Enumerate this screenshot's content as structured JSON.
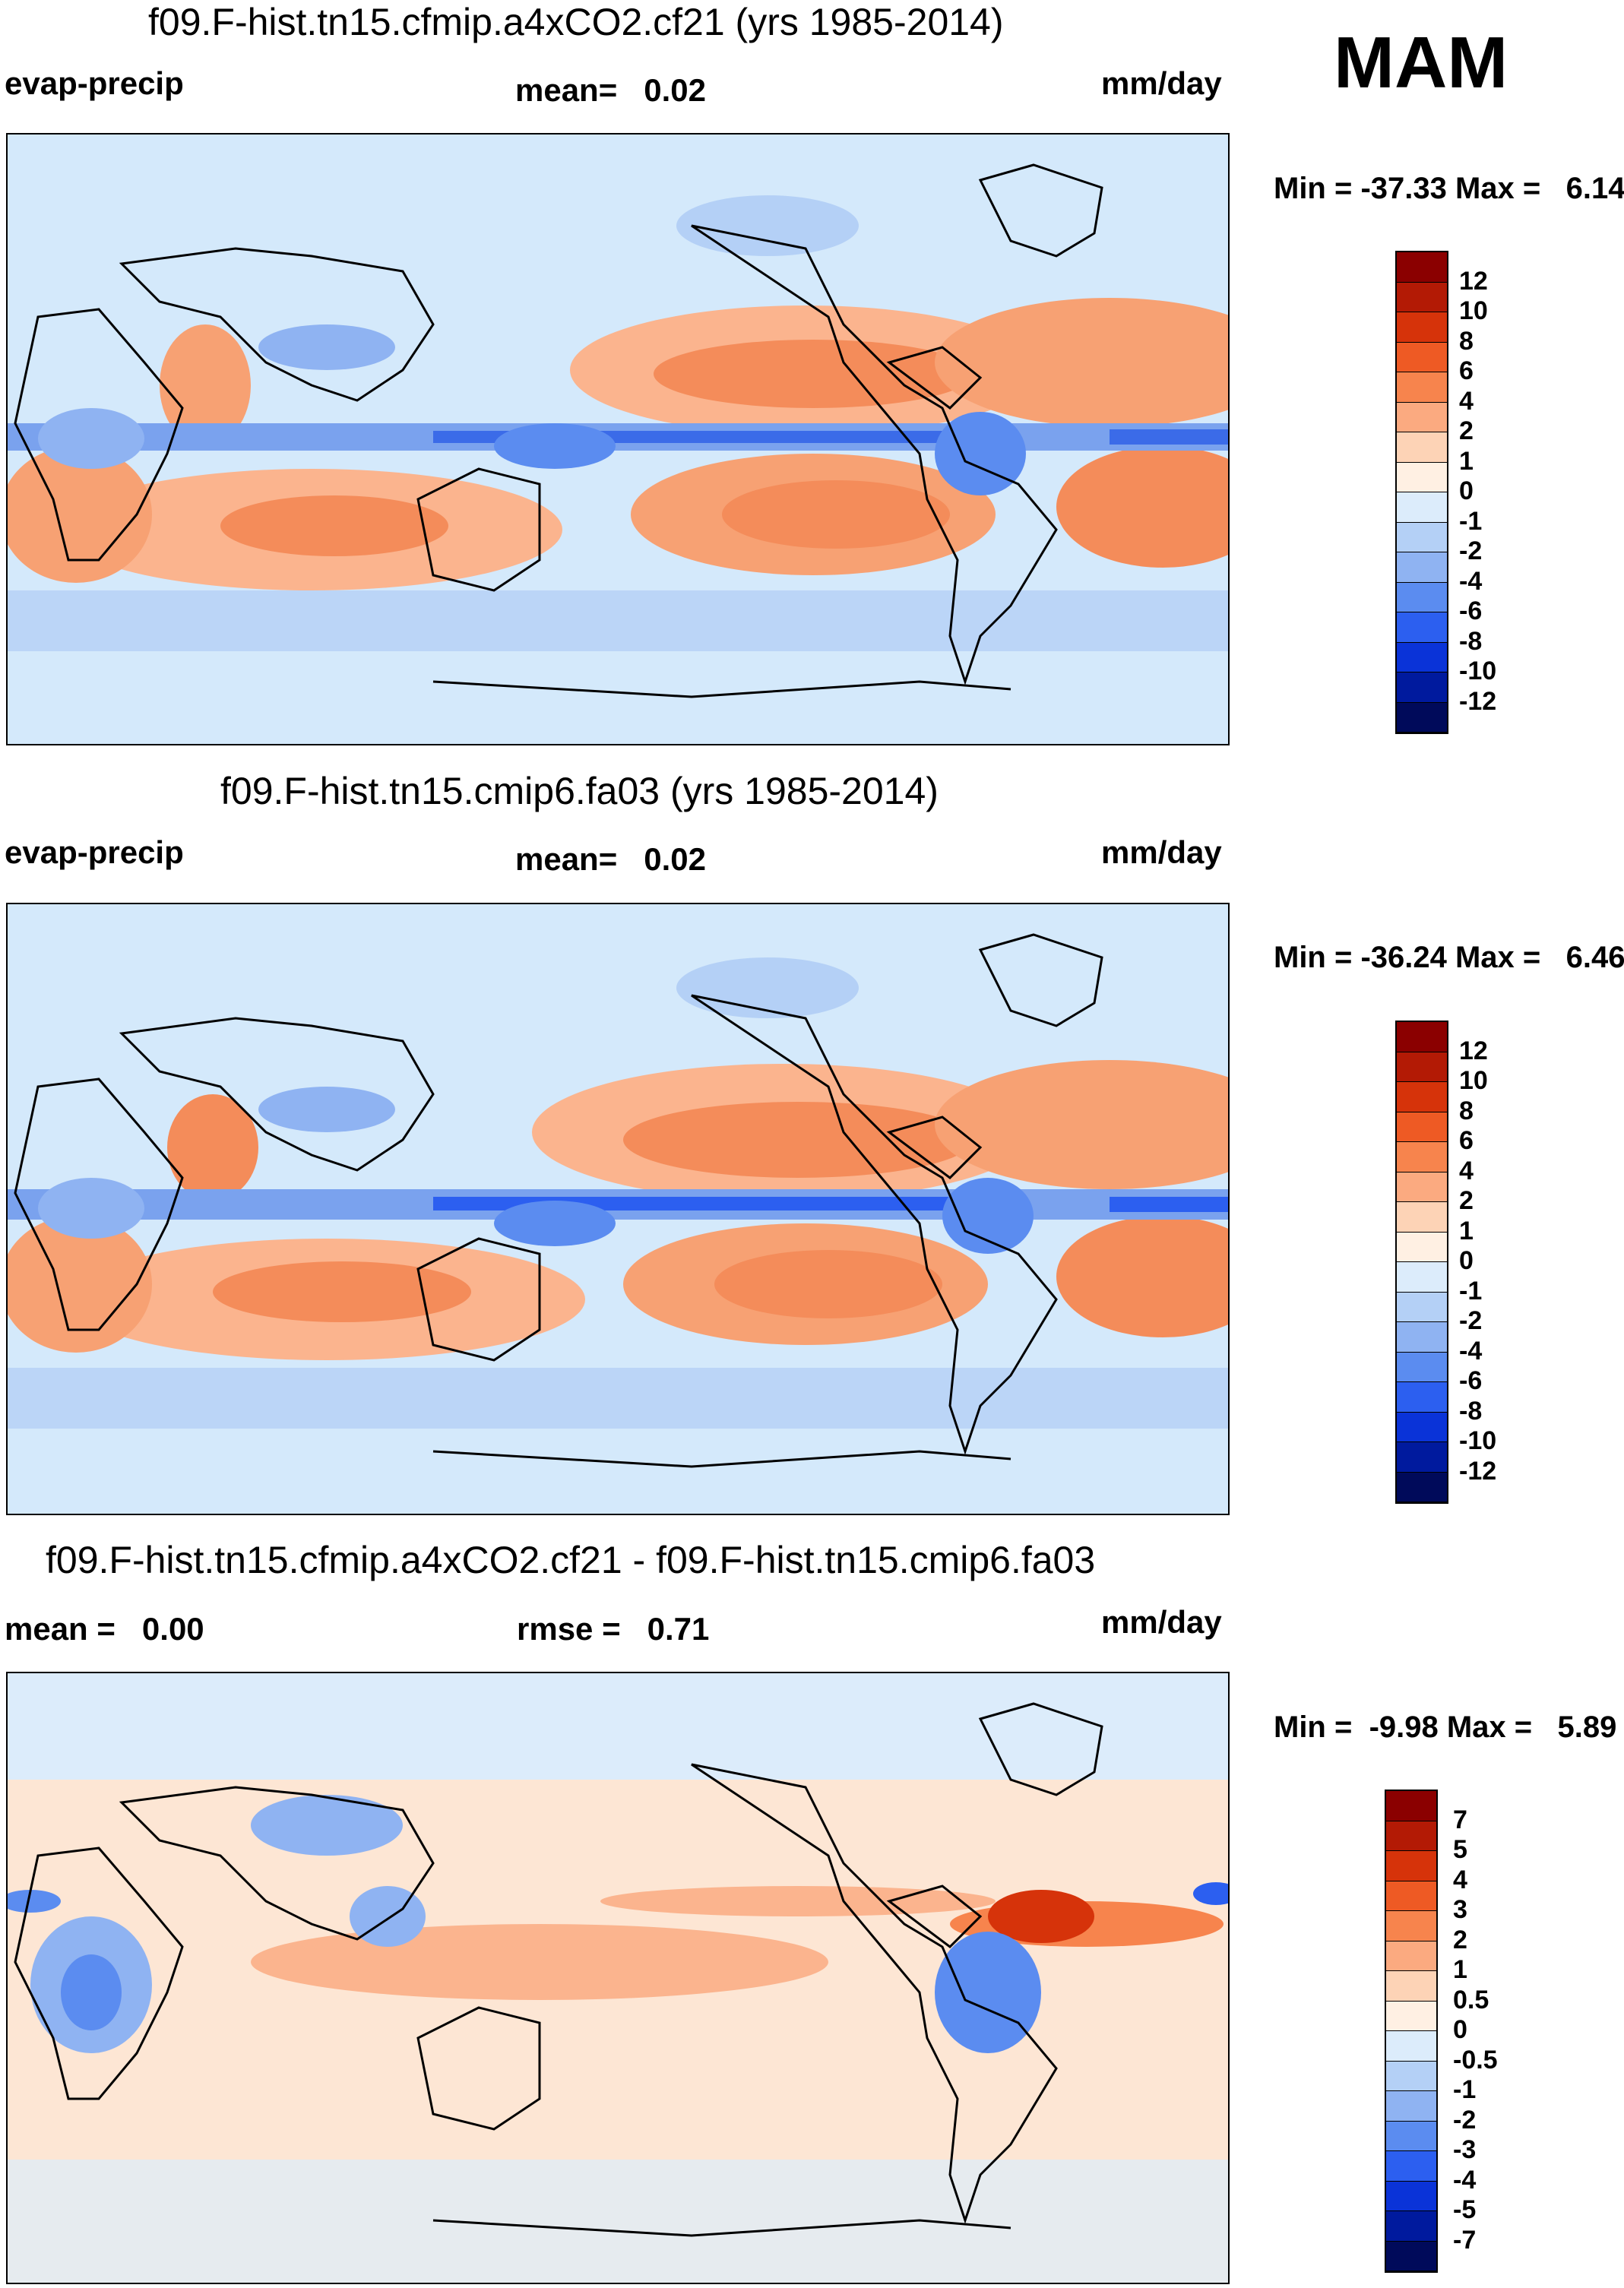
{
  "season": "MAM",
  "colors": {
    "ocean_light": "#d4e9fb",
    "land_line": "#000000"
  },
  "panels": [
    {
      "title": "f09.F-hist.tn15.cfmip.a4xCO2.cf21 (yrs 1985-2014)",
      "left_label": "evap-precip",
      "center_label": "mean=   0.02",
      "right_label": "mm/day",
      "minmax": "Min = -37.33 Max =   6.14",
      "colorbar_labels": [
        "12",
        "10",
        "8",
        "6",
        "4",
        "2",
        "1",
        "0",
        "-1",
        "-2",
        "-4",
        "-6",
        "-8",
        "-10",
        "-12"
      ],
      "colorbar_colors": [
        "#8b0000",
        "#b31a05",
        "#d6330a",
        "#ee5a24",
        "#f7844d",
        "#fbaa80",
        "#fdd3b6",
        "#fff0e3",
        "#dcecfb",
        "#b4d0f6",
        "#8fb3f2",
        "#5b8cf0",
        "#2c5ff0",
        "#0a33d8",
        "#001a9e",
        "#000a5a"
      ]
    },
    {
      "title": "f09.F-hist.tn15.cmip6.fa03 (yrs 1985-2014)",
      "left_label": "evap-precip",
      "center_label": "mean=   0.02",
      "right_label": "mm/day",
      "minmax": "Min = -36.24 Max =   6.46",
      "colorbar_labels": [
        "12",
        "10",
        "8",
        "6",
        "4",
        "2",
        "1",
        "0",
        "-1",
        "-2",
        "-4",
        "-6",
        "-8",
        "-10",
        "-12"
      ],
      "colorbar_colors": [
        "#8b0000",
        "#b31a05",
        "#d6330a",
        "#ee5a24",
        "#f7844d",
        "#fbaa80",
        "#fdd3b6",
        "#fff0e3",
        "#dcecfb",
        "#b4d0f6",
        "#8fb3f2",
        "#5b8cf0",
        "#2c5ff0",
        "#0a33d8",
        "#001a9e",
        "#000a5a"
      ]
    },
    {
      "title": "f09.F-hist.tn15.cfmip.a4xCO2.cf21 - f09.F-hist.tn15.cmip6.fa03",
      "left_label": "mean =   0.00",
      "center_label": "rmse =   0.71",
      "right_label": "mm/day",
      "minmax": "Min =  -9.98 Max =   5.89",
      "colorbar_labels": [
        "7",
        "5",
        "4",
        "3",
        "2",
        "1",
        "0.5",
        "0",
        "-0.5",
        "-1",
        "-2",
        "-3",
        "-4",
        "-5",
        "-7"
      ],
      "colorbar_colors": [
        "#8b0000",
        "#b31a05",
        "#d6330a",
        "#ee5a24",
        "#f7844d",
        "#fbaa80",
        "#fdd3b6",
        "#fff0e3",
        "#dcecfb",
        "#b4d0f6",
        "#8fb3f2",
        "#5b8cf0",
        "#2c5ff0",
        "#0a33d8",
        "#001a9e",
        "#000a5a"
      ]
    }
  ]
}
